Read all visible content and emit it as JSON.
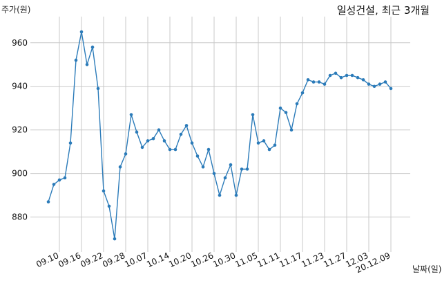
{
  "chart_data": {
    "type": "line",
    "title": "일성건설, 최근 3개월",
    "ylabel": "주가(원)",
    "xlabel": "날짜(일)",
    "ylim": [
      864,
      972
    ],
    "yticks": [
      880,
      900,
      920,
      940,
      960
    ],
    "xtick_labels": [
      "09.10",
      "09.16",
      "09.22",
      "09.28",
      "10.07",
      "10.14",
      "10.20",
      "10.26",
      "10.30",
      "11.05",
      "11.11",
      "11.17",
      "11.23",
      "11.27",
      "12.03",
      "20.12.09"
    ],
    "xtick_indices": [
      2,
      6,
      10,
      14,
      18,
      22,
      26,
      30,
      34,
      38,
      42,
      46,
      50,
      54,
      58,
      62
    ],
    "grid": true,
    "color": "#2b7bb9",
    "values": [
      887,
      895,
      897,
      898,
      914,
      952,
      965,
      950,
      958,
      939,
      892,
      885,
      870,
      903,
      909,
      927,
      919,
      912,
      915,
      916,
      920,
      915,
      911,
      911,
      918,
      922,
      914,
      908,
      903,
      911,
      900,
      890,
      898,
      904,
      890,
      902,
      902,
      927,
      914,
      915,
      911,
      913,
      930,
      928,
      920,
      932,
      937,
      943,
      942,
      942,
      941,
      945,
      946,
      944,
      945,
      945,
      944,
      943,
      941,
      940,
      941,
      942,
      939
    ]
  }
}
